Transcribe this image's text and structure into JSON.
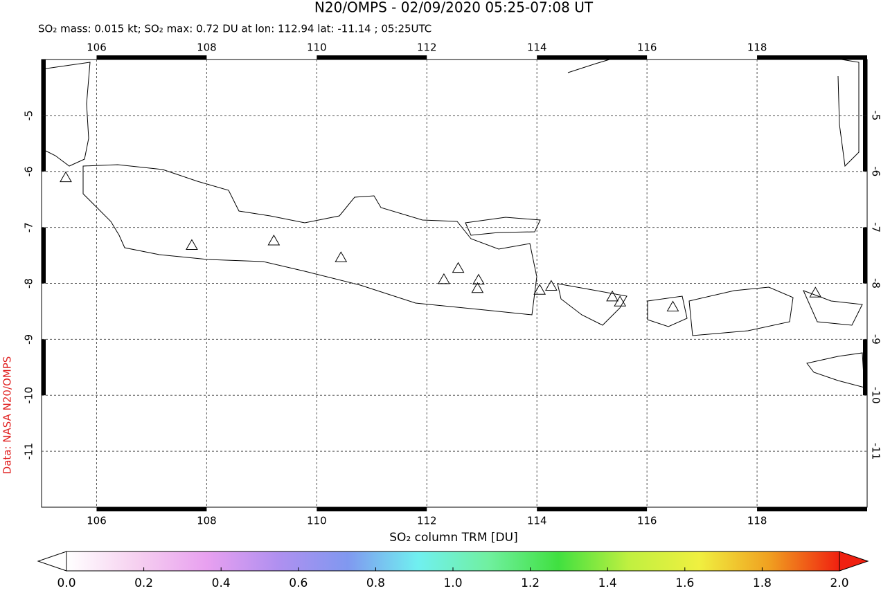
{
  "chart_data": {
    "type": "map",
    "title": "N20/OMPS - 02/09/2020 05:25-07:08 UT",
    "subtitle": "SO₂ mass: 0.015 kt; SO₂ max: 0.72 DU at lon: 112.94 lat: -11.14 ; 05:25UTC",
    "side_label": "Data: NASA N20/OMPS",
    "xlim": [
      105,
      120
    ],
    "ylim": [
      -12,
      -4
    ],
    "xticks": [
      106,
      108,
      110,
      112,
      114,
      116,
      118
    ],
    "yticks": [
      -5,
      -6,
      -7,
      -8,
      -9,
      -10,
      -11
    ],
    "grid": true,
    "volcanoes": {
      "lon": [
        105.44,
        107.73,
        109.22,
        110.44,
        112.31,
        112.57,
        112.94,
        112.92,
        114.05,
        114.26,
        115.37,
        115.51,
        116.47,
        119.06
      ],
      "lat": [
        -6.11,
        -7.32,
        -7.24,
        -7.54,
        -7.93,
        -7.73,
        -7.94,
        -8.09,
        -8.12,
        -8.05,
        -8.24,
        -8.33,
        -8.42,
        -8.17
      ]
    },
    "colorbar": {
      "label": "SO₂ column TRM [DU]",
      "lim": [
        0,
        2
      ],
      "ticks": [
        {
          "value": 0,
          "label": "0.0"
        },
        {
          "value": 0.2,
          "label": "0.2"
        },
        {
          "value": 0.4,
          "label": "0.4"
        },
        {
          "value": 0.6,
          "label": "0.6"
        },
        {
          "value": 0.8,
          "label": "0.8"
        },
        {
          "value": 1,
          "label": "1.0"
        },
        {
          "value": 1.2,
          "label": "1.2"
        },
        {
          "value": 1.4,
          "label": "1.4"
        },
        {
          "value": 1.6,
          "label": "1.6"
        },
        {
          "value": 1.8,
          "label": "1.8"
        },
        {
          "value": 2,
          "label": "2.0"
        }
      ],
      "colors": [
        "#ffffff",
        "#f6d0f0",
        "#e8a0f0",
        "#b090f0",
        "#8098f0",
        "#70f0f0",
        "#70f0a0",
        "#40e040",
        "#c0f040",
        "#f0f040",
        "#f0a020",
        "#f02010"
      ]
    }
  }
}
